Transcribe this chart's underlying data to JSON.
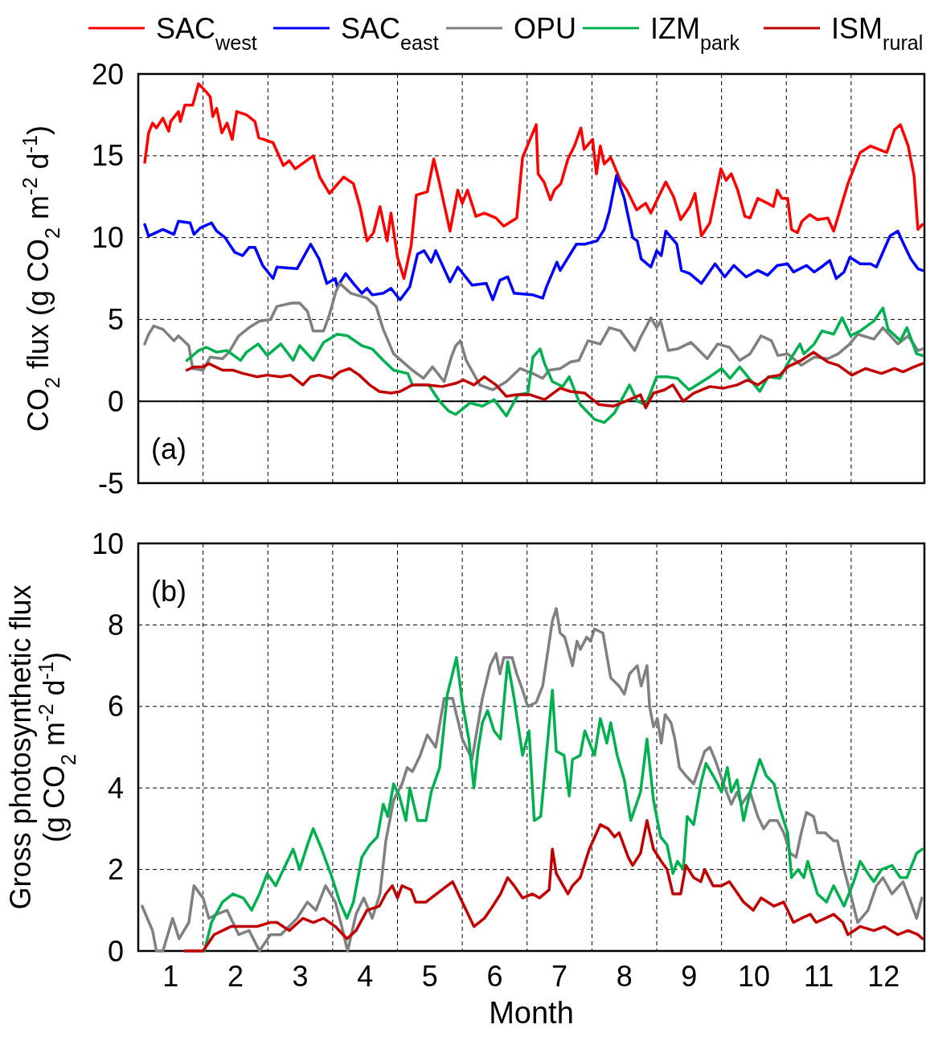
{
  "chart_data": [
    {
      "type": "line",
      "ylabel": "CO$_{2}$ flux (g CO$_{2}$ m$^{-2}$ d$^{-1}$)",
      "annotations": [
        "(a)"
      ],
      "xlim": [
        0.5,
        12.63
      ],
      "xticks": [
        1,
        2,
        3,
        4,
        5,
        6,
        7,
        8,
        9,
        10,
        11,
        12,
        {
          "value": 1.5,
          "label": null
        },
        {
          "value": 2.5,
          "label": null
        },
        {
          "value": 3.5,
          "label": null
        },
        {
          "value": 4.5,
          "label": null
        },
        {
          "value": 5.5,
          "label": null
        },
        {
          "value": 6.5,
          "label": null
        },
        {
          "value": 7.5,
          "label": null
        },
        {
          "value": 8.5,
          "label": null
        },
        {
          "value": 9.5,
          "label": null
        },
        {
          "value": 10.5,
          "label": null
        },
        {
          "value": 11.5,
          "label": null
        }
      ],
      "ylim": [
        -5,
        20
      ],
      "yticks": [
        -5,
        0,
        5,
        10,
        15,
        20
      ],
      "tick_labels": "y",
      "grid": true,
      "legend": "top",
      "line_style": "solid",
      "ref_lines": [
        {
          "axis": "y",
          "value": 0,
          "color": "#000000"
        }
      ],
      "series": [
        {
          "name": "SAC$_{west}$",
          "color": "#ff0000",
          "x": [
            0.6,
            0.66,
            0.72,
            0.78,
            0.88,
            0.97,
            1.0,
            1.12,
            1.15,
            1.22,
            1.34,
            1.43,
            1.55,
            1.61,
            1.65,
            1.71,
            1.79,
            1.87,
            1.95,
            2.02,
            2.17,
            2.3,
            2.36,
            2.58,
            2.74,
            2.83,
            2.92,
            3.2,
            3.3,
            3.45,
            3.67,
            3.82,
            3.92,
            4.03,
            4.13,
            4.23,
            4.34,
            4.4,
            4.5,
            4.6,
            4.71,
            4.79,
            4.96,
            5.06,
            5.15,
            5.31,
            5.43,
            5.5,
            5.58,
            5.71,
            5.84,
            6.02,
            6.14,
            6.34,
            6.43,
            6.64,
            6.67,
            6.76,
            6.86,
            6.92,
            7.02,
            7.13,
            7.23,
            7.33,
            7.38,
            7.51,
            7.57,
            7.63,
            7.69,
            7.79,
            7.95,
            8.04,
            8.19,
            8.33,
            8.41,
            8.54,
            8.64,
            8.76,
            8.87,
            9.01,
            9.09,
            9.19,
            9.32,
            9.49,
            9.57,
            9.65,
            9.75,
            9.86,
            9.94,
            10.06,
            10.21,
            10.3,
            10.36,
            10.43,
            10.52,
            10.58,
            10.67,
            10.74,
            10.86,
            10.98,
            11.14,
            11.23,
            11.36,
            11.45,
            11.64,
            11.8,
            11.92,
            12.05,
            12.17,
            12.26,
            12.38,
            12.47,
            12.53,
            12.6
          ],
          "values": [
            14.6,
            16.4,
            17.0,
            16.7,
            17.3,
            16.5,
            17.1,
            17.7,
            17.1,
            18.1,
            18.1,
            19.4,
            18.9,
            18.6,
            17.4,
            17.9,
            16.4,
            17.0,
            16.0,
            17.7,
            17.5,
            17.1,
            16.1,
            15.8,
            14.4,
            14.7,
            14.2,
            15.0,
            13.7,
            12.7,
            13.7,
            13.3,
            11.9,
            9.8,
            10.3,
            11.9,
            9.8,
            11.5,
            8.8,
            7.5,
            9.5,
            12.6,
            12.8,
            14.8,
            13.3,
            10.4,
            12.9,
            12.1,
            12.9,
            11.3,
            11.5,
            11.2,
            10.7,
            11.2,
            14.9,
            16.9,
            13.9,
            13.4,
            12.3,
            12.9,
            13.3,
            14.8,
            15.6,
            16.7,
            15.4,
            16.0,
            13.9,
            15.6,
            14.5,
            14.9,
            13.4,
            12.9,
            11.7,
            12.1,
            11.5,
            12.6,
            13.4,
            12.5,
            11.1,
            11.9,
            12.7,
            10.1,
            10.9,
            14.2,
            13.5,
            13.9,
            12.9,
            11.3,
            11.2,
            12.4,
            12.1,
            11.9,
            12.9,
            12.4,
            12.4,
            10.5,
            10.3,
            11.0,
            11.4,
            11.1,
            11.2,
            10.4,
            12.1,
            13.3,
            15.2,
            15.6,
            15.4,
            15.2,
            16.6,
            16.9,
            15.6,
            13.8,
            10.5,
            10.8
          ]
        },
        {
          "name": "SAC$_{east}$",
          "color": "#0000ff",
          "x": [
            0.6,
            0.66,
            0.88,
            1.05,
            1.12,
            1.3,
            1.36,
            1.46,
            1.63,
            1.71,
            1.84,
            1.99,
            2.11,
            2.21,
            2.3,
            2.42,
            2.58,
            2.64,
            2.95,
            3.16,
            3.29,
            3.41,
            3.54,
            3.57,
            3.7,
            3.82,
            3.95,
            4.03,
            4.11,
            4.28,
            4.4,
            4.54,
            4.69,
            4.81,
            4.91,
            5.02,
            5.09,
            5.31,
            5.43,
            5.65,
            5.87,
            5.97,
            6.08,
            6.2,
            6.3,
            6.59,
            6.74,
            6.8,
            6.96,
            7.01,
            7.26,
            7.39,
            7.58,
            7.69,
            7.77,
            7.88,
            8.0,
            8.13,
            8.2,
            8.26,
            8.41,
            8.5,
            8.57,
            8.64,
            8.81,
            8.88,
            9.01,
            9.19,
            9.4,
            9.55,
            9.69,
            9.88,
            10.06,
            10.21,
            10.36,
            10.52,
            10.61,
            10.81,
            10.93,
            11.04,
            11.17,
            11.27,
            11.39,
            11.48,
            11.64,
            11.8,
            11.89,
            12.1,
            12.22,
            12.3,
            12.42,
            12.53,
            12.6
          ],
          "values": [
            10.8,
            10.1,
            10.5,
            10.2,
            11.0,
            10.9,
            10.2,
            10.6,
            10.9,
            10.4,
            10.0,
            9.1,
            8.9,
            9.4,
            9.4,
            8.3,
            7.5,
            8.2,
            8.1,
            9.6,
            8.7,
            7.2,
            7.5,
            7.0,
            7.8,
            7.2,
            6.6,
            6.9,
            6.5,
            6.6,
            6.9,
            6.2,
            7.0,
            9.0,
            9.2,
            8.5,
            9.2,
            7.3,
            8.2,
            7.1,
            7.2,
            6.2,
            7.4,
            7.6,
            6.6,
            6.5,
            6.3,
            7.0,
            8.5,
            8.0,
            9.6,
            9.6,
            9.8,
            10.5,
            11.6,
            13.8,
            12.4,
            10.0,
            9.8,
            8.7,
            8.2,
            9.2,
            8.9,
            10.4,
            9.6,
            8.0,
            7.8,
            7.2,
            8.4,
            7.6,
            8.3,
            7.6,
            8.0,
            7.7,
            8.3,
            8.4,
            7.9,
            8.3,
            7.9,
            8.2,
            8.6,
            7.5,
            7.9,
            8.8,
            8.4,
            8.4,
            8.2,
            10.1,
            10.4,
            9.7,
            8.7,
            8.1,
            8.0
          ]
        },
        {
          "name": "OPU",
          "color": "#808080",
          "x": [
            0.6,
            0.66,
            0.74,
            0.88,
            1.05,
            1.12,
            1.28,
            1.34,
            1.5,
            1.61,
            1.8,
            1.9,
            2.05,
            2.21,
            2.37,
            2.54,
            2.64,
            2.87,
            2.99,
            3.11,
            3.2,
            3.36,
            3.45,
            3.55,
            3.61,
            3.78,
            4.03,
            4.17,
            4.28,
            4.44,
            4.73,
            4.9,
            5.04,
            5.22,
            5.33,
            5.4,
            5.47,
            5.56,
            5.77,
            5.97,
            6.18,
            6.39,
            6.59,
            6.74,
            6.84,
            7.01,
            7.17,
            7.3,
            7.44,
            7.63,
            7.77,
            7.94,
            8.16,
            8.25,
            8.41,
            8.5,
            8.56,
            8.68,
            8.82,
            9.03,
            9.28,
            9.44,
            9.62,
            9.78,
            9.94,
            10.11,
            10.27,
            10.37,
            10.52,
            10.73,
            10.93,
            11.14,
            11.3,
            11.48,
            11.6,
            11.85,
            11.99,
            12.22,
            12.38,
            12.53,
            12.6
          ],
          "values": [
            3.5,
            4.1,
            4.6,
            4.4,
            3.7,
            4.0,
            3.4,
            2.0,
            1.9,
            2.7,
            2.6,
            3.0,
            4.0,
            4.5,
            4.9,
            5.0,
            5.8,
            6.0,
            6.0,
            5.5,
            4.3,
            4.3,
            5.3,
            6.7,
            7.2,
            6.6,
            6.3,
            5.8,
            4.4,
            2.9,
            1.9,
            1.4,
            2.1,
            1.2,
            2.7,
            3.4,
            3.7,
            2.5,
            1.0,
            0.7,
            1.2,
            2.0,
            1.7,
            1.4,
            1.9,
            2.0,
            2.4,
            2.5,
            3.7,
            3.5,
            4.5,
            4.3,
            3.1,
            3.9,
            5.1,
            4.5,
            4.9,
            3.1,
            3.2,
            3.6,
            2.6,
            3.5,
            3.3,
            2.5,
            2.9,
            4.0,
            3.7,
            2.8,
            2.9,
            2.2,
            2.7,
            2.6,
            2.9,
            3.5,
            4.1,
            3.8,
            4.5,
            3.5,
            4.0,
            3.1,
            3.2
          ]
        },
        {
          "name": "IZM$_{park}$",
          "color": "#00b050",
          "x": [
            1.25,
            1.43,
            1.55,
            1.71,
            1.87,
            2.08,
            2.17,
            2.35,
            2.49,
            2.7,
            2.89,
            2.99,
            3.2,
            3.36,
            3.57,
            3.73,
            3.95,
            4.11,
            4.28,
            4.44,
            4.66,
            4.73,
            4.98,
            5.15,
            5.29,
            5.4,
            5.62,
            5.81,
            5.99,
            6.18,
            6.36,
            6.51,
            6.59,
            6.7,
            6.77,
            6.89,
            7.05,
            7.15,
            7.32,
            7.54,
            7.69,
            7.85,
            8.08,
            8.2,
            8.33,
            8.5,
            8.66,
            8.82,
            9.0,
            9.32,
            9.5,
            9.63,
            9.78,
            9.99,
            10.09,
            10.22,
            10.4,
            10.52,
            10.71,
            10.77,
            10.93,
            11.05,
            11.23,
            11.36,
            11.49,
            11.64,
            11.85,
            11.99,
            12.07,
            12.26,
            12.36,
            12.51,
            12.6
          ],
          "values": [
            2.5,
            3.1,
            3.3,
            3.0,
            3.1,
            2.5,
            3.0,
            3.5,
            2.8,
            3.5,
            2.5,
            3.4,
            2.5,
            3.6,
            4.1,
            4.0,
            3.4,
            3.2,
            2.5,
            1.9,
            1.7,
            1.0,
            1.0,
            0.0,
            -0.6,
            -0.8,
            -0.1,
            -0.3,
            0.1,
            -0.9,
            0.4,
            0.5,
            2.7,
            3.2,
            2.3,
            1.2,
            0.9,
            1.5,
            -0.2,
            -1.1,
            -1.3,
            -0.7,
            1.0,
            0.0,
            -0.2,
            1.5,
            1.5,
            1.4,
            0.7,
            1.5,
            2.0,
            1.4,
            2.1,
            1.1,
            0.6,
            1.5,
            1.4,
            2.3,
            3.5,
            2.9,
            3.5,
            4.3,
            4.1,
            5.1,
            4.0,
            4.3,
            4.9,
            5.7,
            4.4,
            3.7,
            4.5,
            2.9,
            2.8
          ]
        },
        {
          "name": "ISM$_{rural}$",
          "color": "#c00000",
          "x": [
            1.25,
            1.36,
            1.5,
            1.59,
            1.8,
            1.96,
            2.12,
            2.33,
            2.49,
            2.7,
            2.85,
            3.04,
            3.16,
            3.29,
            3.49,
            3.61,
            3.76,
            3.91,
            4.07,
            4.22,
            4.4,
            4.54,
            4.73,
            4.94,
            5.19,
            5.4,
            5.52,
            5.68,
            5.84,
            6.02,
            6.18,
            6.34,
            6.55,
            6.77,
            7.01,
            7.17,
            7.39,
            7.61,
            7.83,
            8.08,
            8.25,
            8.33,
            8.45,
            8.62,
            8.75,
            8.91,
            9.07,
            9.32,
            9.53,
            9.74,
            9.9,
            10.06,
            10.24,
            10.4,
            10.52,
            10.73,
            10.92,
            11.14,
            11.3,
            11.51,
            11.72,
            11.97,
            12.17,
            12.3,
            12.47,
            12.6
          ],
          "values": [
            1.9,
            2.1,
            2.1,
            2.3,
            1.9,
            1.9,
            1.7,
            1.5,
            1.6,
            1.5,
            1.6,
            1.0,
            1.5,
            1.6,
            1.4,
            1.8,
            2.0,
            1.6,
            1.0,
            0.6,
            0.5,
            0.6,
            1.0,
            1.0,
            0.9,
            1.1,
            1.3,
            1.0,
            1.5,
            1.0,
            0.3,
            0.4,
            0.4,
            0.1,
            0.8,
            0.6,
            0.5,
            -0.2,
            -0.3,
            0.1,
            0.4,
            -0.4,
            0.5,
            0.7,
            1.0,
            0.0,
            0.5,
            0.9,
            0.8,
            1.0,
            1.3,
            1.0,
            1.5,
            1.6,
            2.1,
            2.5,
            3.0,
            2.4,
            2.2,
            1.6,
            2.0,
            1.7,
            2.0,
            1.8,
            2.1,
            2.3
          ]
        }
      ]
    },
    {
      "type": "line",
      "xlabel": "Month",
      "ylabel": "Gross photosynthetic flux (g CO$_{2}$ m$^{-2}$ d$^{-1}$)",
      "annotations": [
        "(b)"
      ],
      "xlim": [
        0.5,
        12.63
      ],
      "xticks": [
        1,
        2,
        3,
        4,
        5,
        6,
        7,
        8,
        9,
        10,
        11,
        12,
        {
          "value": 1.5,
          "label": null
        },
        {
          "value": 2.5,
          "label": null
        },
        {
          "value": 3.5,
          "label": null
        },
        {
          "value": 4.5,
          "label": null
        },
        {
          "value": 5.5,
          "label": null
        },
        {
          "value": 6.5,
          "label": null
        },
        {
          "value": 7.5,
          "label": null
        },
        {
          "value": 8.5,
          "label": null
        },
        {
          "value": 9.5,
          "label": null
        },
        {
          "value": 10.5,
          "label": null
        },
        {
          "value": 11.5,
          "label": null
        }
      ],
      "ylim": [
        0,
        10
      ],
      "yticks": [
        0,
        2,
        4,
        6,
        8,
        10
      ],
      "grid": true,
      "line_style": "solid",
      "series": [
        {
          "color": "#808080",
          "x": [
            0.56,
            0.72,
            0.78,
            0.88,
            1.03,
            1.13,
            1.28,
            1.36,
            1.5,
            1.59,
            1.71,
            1.87,
            2.05,
            2.21,
            2.37,
            2.54,
            2.7,
            2.95,
            3.11,
            3.24,
            3.39,
            3.54,
            3.64,
            3.73,
            3.86,
            3.98,
            4.11,
            4.23,
            4.32,
            4.44,
            4.57,
            4.65,
            4.73,
            4.85,
            4.96,
            5.09,
            5.22,
            5.35,
            5.5,
            5.65,
            5.81,
            5.93,
            6.02,
            6.08,
            6.14,
            6.27,
            6.34,
            6.43,
            6.51,
            6.64,
            6.74,
            6.89,
            6.95,
            7.01,
            7.08,
            7.2,
            7.27,
            7.32,
            7.42,
            7.48,
            7.54,
            7.67,
            7.79,
            7.92,
            8.0,
            8.08,
            8.2,
            8.26,
            8.35,
            8.39,
            8.45,
            8.51,
            8.57,
            8.63,
            8.72,
            8.78,
            8.85,
            8.95,
            9.07,
            9.24,
            9.32,
            9.4,
            9.53,
            9.65,
            9.74,
            9.81,
            9.94,
            10.06,
            10.15,
            10.24,
            10.36,
            10.46,
            10.56,
            10.65,
            10.73,
            10.81,
            10.92,
            10.98,
            11.1,
            11.23,
            11.29,
            11.39,
            11.49,
            11.6,
            11.76,
            11.89,
            11.99,
            12.13,
            12.3,
            12.42,
            12.51,
            12.59
          ],
          "values": [
            1.1,
            0.5,
            0,
            0,
            0.8,
            0.3,
            0.7,
            1.6,
            1.3,
            0.8,
            0.9,
            1.0,
            0.4,
            0.5,
            0,
            0.4,
            0.4,
            0.8,
            1.2,
            1.0,
            1.6,
            1.2,
            0.6,
            0,
            0.9,
            1.3,
            0.8,
            1.4,
            2.7,
            3.7,
            4.1,
            4.5,
            4.4,
            4.8,
            5.3,
            5.0,
            6.2,
            6.2,
            5.2,
            4.7,
            6.2,
            7.0,
            7.3,
            6.8,
            7.2,
            7.2,
            6.8,
            6.4,
            6.0,
            6.1,
            6.5,
            8.1,
            8.4,
            7.8,
            7.7,
            7.0,
            7.6,
            7.4,
            7.7,
            7.6,
            7.9,
            7.8,
            6.7,
            6.5,
            6.3,
            6.8,
            7.0,
            6.5,
            7.0,
            6.0,
            5.5,
            5.7,
            5.1,
            5.8,
            5.6,
            5.2,
            4.5,
            4.3,
            4.1,
            4.9,
            5.0,
            4.7,
            4.1,
            3.6,
            3.9,
            3.6,
            3.9,
            3.3,
            3.0,
            3.2,
            3.2,
            2.9,
            2.4,
            2.3,
            2.9,
            3.4,
            3.3,
            2.9,
            2.9,
            2.7,
            2.7,
            2.0,
            1.4,
            0.7,
            1.0,
            1.6,
            1.8,
            1.4,
            1.7,
            1.2,
            0.8,
            1.3
          ]
        },
        {
          "color": "#00b050",
          "x": [
            1.52,
            1.63,
            1.8,
            1.96,
            2.12,
            2.25,
            2.37,
            2.49,
            2.62,
            2.77,
            2.89,
            2.99,
            3.11,
            3.2,
            3.33,
            3.49,
            3.61,
            3.72,
            3.82,
            3.95,
            4.07,
            4.19,
            4.28,
            4.35,
            4.44,
            4.53,
            4.63,
            4.69,
            4.81,
            4.94,
            5.02,
            5.15,
            5.27,
            5.41,
            5.5,
            5.6,
            5.68,
            5.74,
            5.81,
            5.89,
            5.99,
            6.09,
            6.2,
            6.3,
            6.43,
            6.53,
            6.61,
            6.71,
            6.89,
            6.95,
            7.07,
            7.15,
            7.2,
            7.32,
            7.39,
            7.54,
            7.63,
            7.73,
            7.79,
            7.89,
            8.0,
            8.1,
            8.25,
            8.35,
            8.45,
            8.56,
            8.66,
            8.75,
            8.82,
            8.91,
            8.97,
            9.07,
            9.18,
            9.26,
            9.37,
            9.44,
            9.5,
            9.59,
            9.65,
            9.74,
            9.84,
            9.94,
            10.09,
            10.19,
            10.31,
            10.4,
            10.52,
            10.58,
            10.68,
            10.77,
            10.83,
            10.98,
            11.12,
            11.23,
            11.39,
            11.54,
            11.64,
            11.76,
            11.85,
            11.97,
            12.13,
            12.26,
            12.36,
            12.51,
            12.6
          ],
          "values": [
            0,
            0.7,
            1.2,
            1.4,
            1.3,
            1.0,
            1.4,
            1.9,
            1.6,
            2.1,
            2.5,
            2.0,
            2.6,
            3.0,
            2.5,
            1.8,
            1.2,
            0.8,
            1.2,
            2.3,
            2.6,
            2.8,
            3.6,
            3.3,
            4.1,
            3.8,
            3.2,
            4.0,
            3.2,
            3.2,
            3.9,
            4.5,
            6.3,
            7.2,
            6.1,
            5.2,
            4.0,
            4.9,
            5.6,
            5.9,
            5.4,
            5.2,
            7.1,
            6.2,
            4.8,
            5.4,
            3.2,
            3.3,
            6.4,
            4.9,
            4.8,
            3.8,
            4.7,
            4.8,
            5.4,
            4.8,
            5.7,
            5.1,
            5.6,
            4.8,
            4.2,
            3.2,
            3.9,
            5.2,
            3.7,
            2.8,
            2.6,
            1.9,
            2.2,
            2.0,
            3.3,
            3.1,
            4.1,
            4.6,
            4.3,
            4.1,
            3.9,
            4.5,
            3.9,
            4.2,
            3.2,
            3.9,
            4.7,
            4.3,
            4.1,
            3.5,
            2.9,
            1.8,
            2.0,
            1.8,
            2.2,
            1.4,
            1.2,
            1.6,
            1.1,
            1.7,
            2.2,
            1.9,
            1.7,
            2.0,
            2.1,
            1.8,
            1.8,
            2.4,
            2.5
          ]
        },
        {
          "color": "#c00000",
          "x": [
            1.22,
            1.5,
            1.67,
            1.8,
            1.93,
            2.12,
            2.33,
            2.54,
            2.64,
            2.83,
            3.04,
            3.2,
            3.36,
            3.54,
            3.72,
            3.86,
            4.03,
            4.22,
            4.32,
            4.42,
            4.5,
            4.57,
            4.71,
            4.78,
            4.94,
            5.1,
            5.35,
            5.5,
            5.68,
            5.84,
            5.97,
            6.09,
            6.2,
            6.3,
            6.43,
            6.58,
            6.69,
            6.84,
            6.89,
            6.95,
            7.13,
            7.2,
            7.32,
            7.46,
            7.63,
            7.75,
            7.85,
            7.92,
            8.06,
            8.13,
            8.25,
            8.35,
            8.45,
            8.57,
            8.66,
            8.75,
            8.87,
            8.95,
            9.07,
            9.18,
            9.24,
            9.37,
            9.5,
            9.62,
            9.71,
            9.84,
            9.99,
            10.11,
            10.31,
            10.46,
            10.61,
            10.73,
            10.87,
            10.96,
            11.1,
            11.23,
            11.37,
            11.45,
            11.64,
            11.85,
            12.01,
            12.22,
            12.38,
            12.53,
            12.6
          ],
          "values": [
            0,
            0,
            0.4,
            0.5,
            0.6,
            0.6,
            0.6,
            0.7,
            0.7,
            0.5,
            0.8,
            0.7,
            0.8,
            0.6,
            0.3,
            0.5,
            1.0,
            1.1,
            1.4,
            1.6,
            1.3,
            1.6,
            1.5,
            1.2,
            1.2,
            1.4,
            1.7,
            1.2,
            0.6,
            0.8,
            1.1,
            1.4,
            1.8,
            1.6,
            1.3,
            1.4,
            1.3,
            1.5,
            2.5,
            1.9,
            1.4,
            1.6,
            1.8,
            2.5,
            3.1,
            3.0,
            2.8,
            2.9,
            2.3,
            2.1,
            2.4,
            3.2,
            2.5,
            2.2,
            2.0,
            1.4,
            1.4,
            2.1,
            1.8,
            1.7,
            2.0,
            1.6,
            1.6,
            1.7,
            1.5,
            1.2,
            1.0,
            1.3,
            1.1,
            1.2,
            0.7,
            0.8,
            0.9,
            0.7,
            0.8,
            0.9,
            0.7,
            0.4,
            0.6,
            0.5,
            0.6,
            0.4,
            0.5,
            0.4,
            0.3
          ]
        }
      ]
    }
  ]
}
